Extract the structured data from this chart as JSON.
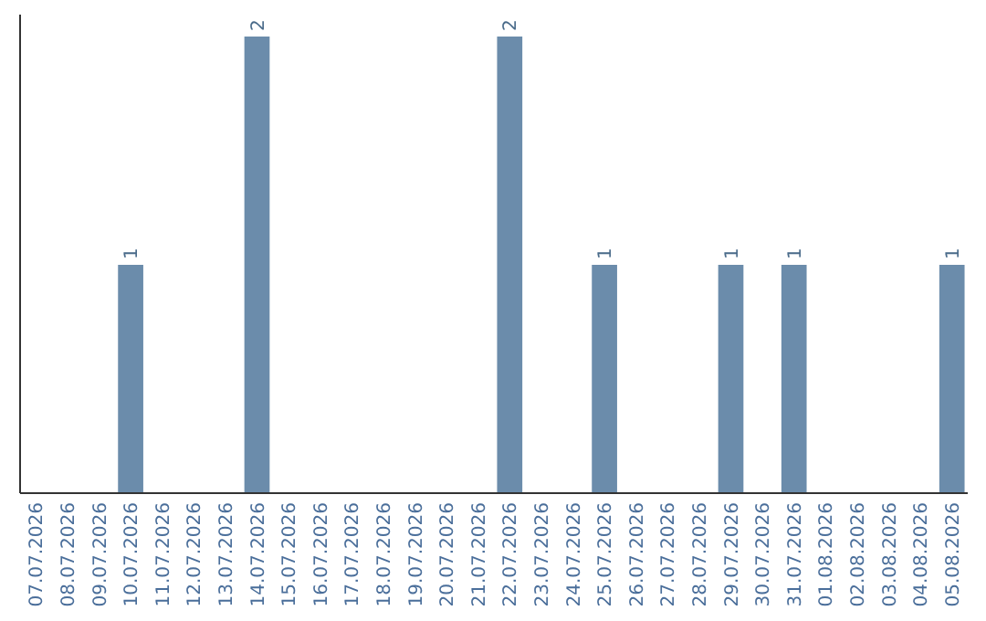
{
  "chart_data": {
    "type": "bar",
    "categories": [
      "07.07.2026",
      "08.07.2026",
      "09.07.2026",
      "10.07.2026",
      "11.07.2026",
      "12.07.2026",
      "13.07.2026",
      "14.07.2026",
      "15.07.2026",
      "16.07.2026",
      "17.07.2026",
      "18.07.2026",
      "19.07.2026",
      "20.07.2026",
      "21.07.2026",
      "22.07.2026",
      "23.07.2026",
      "24.07.2026",
      "25.07.2026",
      "26.07.2026",
      "27.07.2026",
      "28.07.2026",
      "29.07.2026",
      "30.07.2026",
      "31.07.2026",
      "01.08.2026",
      "02.08.2026",
      "03.08.2026",
      "04.08.2026",
      "05.08.2026"
    ],
    "values": [
      0,
      0,
      0,
      1,
      0,
      0,
      0,
      2,
      0,
      0,
      0,
      0,
      0,
      0,
      0,
      2,
      0,
      0,
      1,
      0,
      0,
      0,
      1,
      0,
      1,
      0,
      0,
      0,
      0,
      1
    ],
    "color": "#6b8cab",
    "value_labels": [
      null,
      null,
      null,
      "1",
      null,
      null,
      null,
      "2",
      null,
      null,
      null,
      null,
      null,
      null,
      null,
      "2",
      null,
      null,
      "1",
      null,
      null,
      null,
      "1",
      null,
      "1",
      null,
      null,
      null,
      null,
      "1"
    ]
  }
}
